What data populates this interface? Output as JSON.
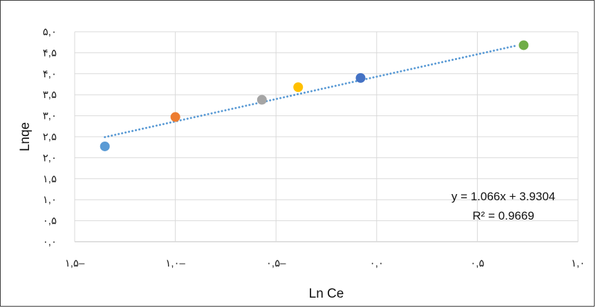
{
  "chart_data": {
    "type": "scatter",
    "title": "",
    "xlabel": "Ln Ce",
    "ylabel": "Lnqe",
    "xlim": [
      -1.5,
      1.0
    ],
    "ylim": [
      0.0,
      5.0
    ],
    "grid": "vertical and horizontal major gridlines",
    "x_ticks": [
      -1.5,
      -1.0,
      -0.5,
      0.0,
      0.5,
      1.0
    ],
    "x_tick_labels": [
      "۱,۵–",
      "۱,۰–",
      "۰,۵–",
      "۰,۰",
      "۰,۵",
      "۱,۰"
    ],
    "y_ticks": [
      0.0,
      0.5,
      1.0,
      1.5,
      2.0,
      2.5,
      3.0,
      3.5,
      4.0,
      4.5,
      5.0
    ],
    "y_tick_labels": [
      "۰,۰",
      "۰,۵",
      "۱,۰",
      "۱,۵",
      "۲,۰",
      "۲,۵",
      "۳,۰",
      "۳,۵",
      "۴,۰",
      "۴,۵",
      "۵,۰"
    ],
    "points": [
      {
        "x": -1.35,
        "y": 2.27,
        "color": "#5b9bd5"
      },
      {
        "x": -1.0,
        "y": 2.97,
        "color": "#ed7d31"
      },
      {
        "x": -0.57,
        "y": 3.38,
        "color": "#a5a5a5"
      },
      {
        "x": -0.39,
        "y": 3.68,
        "color": "#ffc000"
      },
      {
        "x": -0.08,
        "y": 3.9,
        "color": "#4472c4"
      },
      {
        "x": 0.73,
        "y": 4.68,
        "color": "#70ad47"
      }
    ],
    "trendline": {
      "style": "dotted",
      "color": "#5b9bd5",
      "x_start": -1.35,
      "x_end": 0.7,
      "slope": 1.066,
      "intercept": 3.9304,
      "equation": "y = 1.066x + 3.9304",
      "r_squared": "R² = 0.9669"
    },
    "legend": "none"
  }
}
